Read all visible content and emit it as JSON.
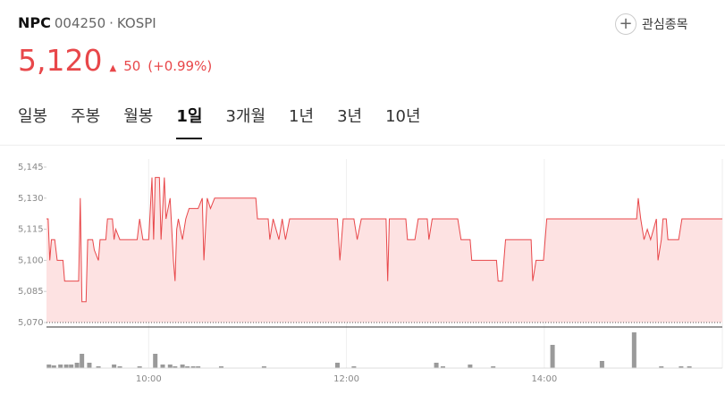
{
  "header": {
    "name": "NPC",
    "code": "004250",
    "separator": "·",
    "market": "KOSPI",
    "watch_label": "관심종목"
  },
  "price": {
    "current": "5,120",
    "change": "50",
    "change_pct": "(+0.99%)"
  },
  "tabs": {
    "items": [
      "일봉",
      "주봉",
      "월봉",
      "1일",
      "3개월",
      "1년",
      "3년",
      "10년"
    ],
    "active": 3
  },
  "chart_data": {
    "type": "line",
    "color": "#e8474a",
    "area_color": "#fde2e2",
    "x": [
      0,
      1,
      2,
      3,
      5,
      6.5,
      10,
      11,
      19.5,
      20.5,
      21.5,
      24,
      25,
      28,
      29,
      31.5,
      32.5,
      36,
      37,
      40,
      41,
      42,
      44.5,
      55,
      56.5,
      58.5,
      62,
      64,
      65,
      66,
      68.5,
      69.5,
      71.5,
      72.5,
      75,
      77,
      78,
      79,
      80,
      82.5,
      84.5,
      86.5,
      92,
      94.5,
      95.5,
      97.5,
      99.5,
      102,
      127,
      128,
      134.5,
      135.5,
      137.5,
      141,
      143,
      145,
      147.5,
      176.5,
      178,
      180,
      186.5,
      188.5,
      191,
      206,
      207,
      208,
      218,
      219,
      223.5,
      225.5,
      231,
      232,
      234,
      249.5,
      251.5,
      257,
      258,
      273,
      274,
      276.5,
      278.5,
      294,
      295,
      297,
      301.5,
      303.5,
      358,
      359,
      360.5,
      362.5,
      364.5,
      366.5,
      370,
      371,
      373,
      374,
      376,
      377,
      383.5,
      385.5,
      410
    ],
    "values": [
      5120,
      5120,
      5100,
      5110,
      5110,
      5100,
      5100,
      5090,
      5090,
      5130,
      5080,
      5080,
      5110,
      5110,
      5105,
      5100,
      5110,
      5110,
      5120,
      5120,
      5110,
      5115,
      5110,
      5110,
      5120,
      5110,
      5110,
      5140,
      5110,
      5140,
      5140,
      5110,
      5140,
      5120,
      5130,
      5100,
      5090,
      5115,
      5120,
      5110,
      5120,
      5125,
      5125,
      5130,
      5100,
      5130,
      5125,
      5130,
      5130,
      5120,
      5120,
      5110,
      5120,
      5110,
      5120,
      5110,
      5120,
      5120,
      5100,
      5120,
      5120,
      5110,
      5120,
      5120,
      5090,
      5120,
      5120,
      5110,
      5110,
      5120,
      5120,
      5110,
      5120,
      5120,
      5110,
      5110,
      5100,
      5100,
      5090,
      5090,
      5110,
      5110,
      5090,
      5100,
      5100,
      5120,
      5120,
      5130,
      5120,
      5110,
      5115,
      5110,
      5120,
      5100,
      5110,
      5120,
      5120,
      5110,
      5110,
      5120,
      5120
    ],
    "xlim": [
      0,
      410
    ],
    "xticks": [
      {
        "value": 62,
        "label": "10:00"
      },
      {
        "value": 182,
        "label": "12:00"
      },
      {
        "value": 302,
        "label": "14:00"
      }
    ],
    "ylim": [
      5070,
      5145
    ],
    "yticks": [
      {
        "value": 5070,
        "label": "5,070"
      },
      {
        "value": 5085,
        "label": "5,085"
      },
      {
        "value": 5100,
        "label": "5,100"
      },
      {
        "value": 5115,
        "label": "5,115"
      },
      {
        "value": 5130,
        "label": "5,130"
      },
      {
        "value": 5145,
        "label": "5,145"
      }
    ],
    "volume": {
      "color": "#9a9a9a",
      "ylim": [
        0,
        42
      ],
      "x": [
        1.5,
        4.5,
        8.5,
        12,
        15,
        18.5,
        21.5,
        26,
        31.5,
        41,
        44.5,
        56.5,
        66,
        70.5,
        75,
        78,
        82.5,
        85.5,
        89,
        92,
        106,
        132,
        176.5,
        186.5,
        236.5,
        240.5,
        257,
        271,
        307,
        337,
        356.5,
        373,
        385,
        390
      ],
      "values": [
        4,
        3,
        4,
        4,
        4,
        6,
        16,
        6,
        2,
        4,
        2,
        2,
        16,
        4,
        4,
        2,
        4,
        2,
        2,
        2,
        2,
        2,
        6,
        2,
        6,
        2,
        4,
        2,
        26,
        8,
        40,
        2,
        2,
        2
      ]
    }
  }
}
